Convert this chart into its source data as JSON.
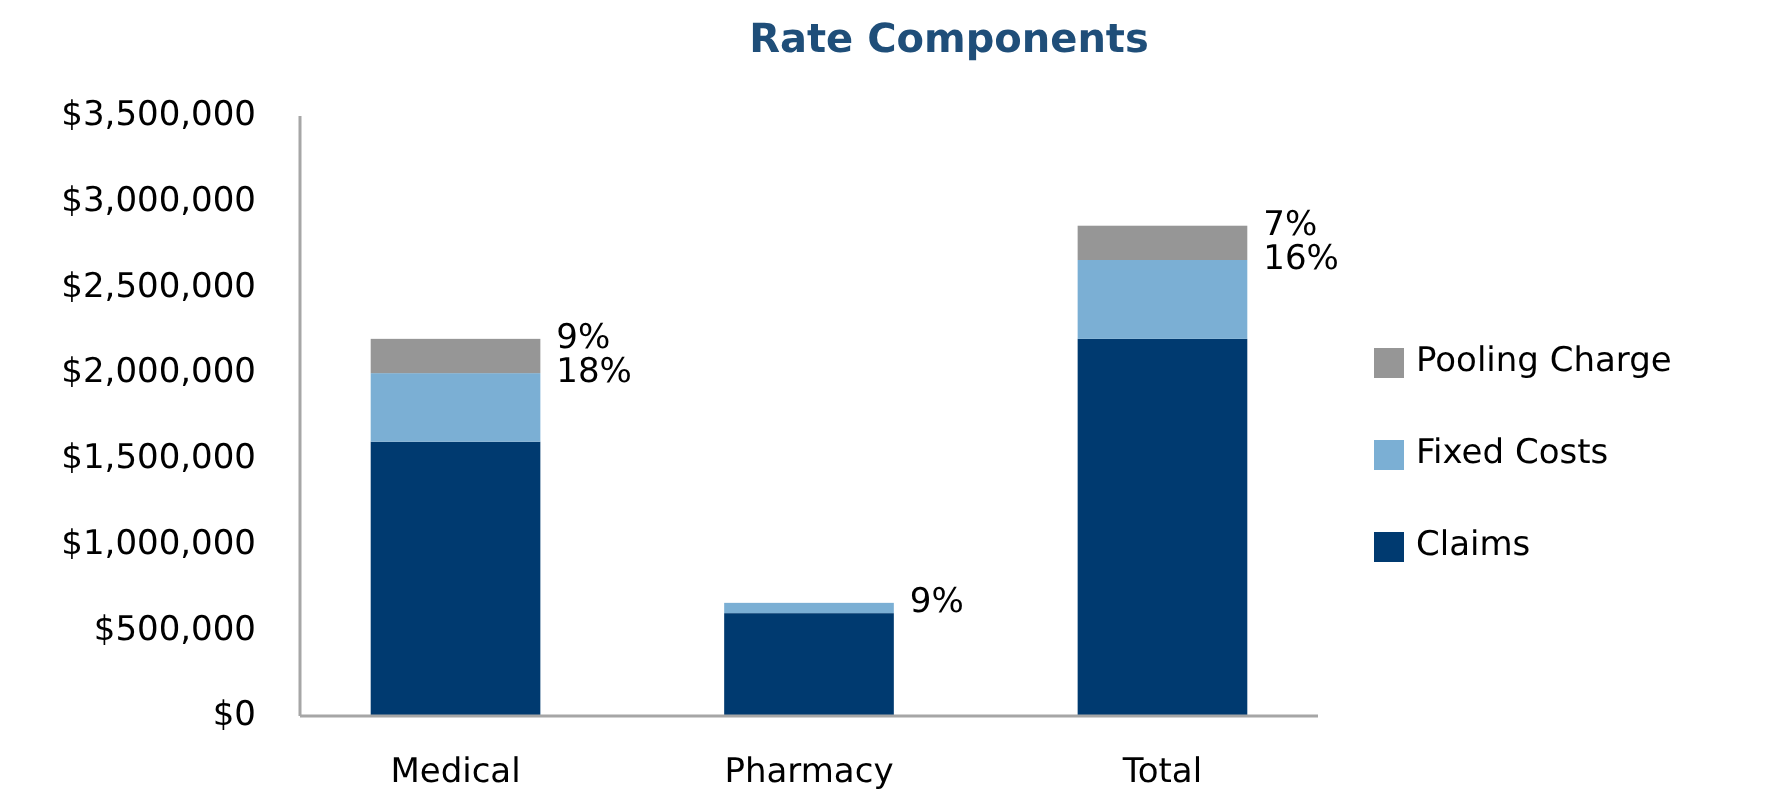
{
  "chart_data": {
    "type": "bar",
    "title": "Rate Components",
    "categories": [
      "Medical",
      "Pharmacy",
      "Total"
    ],
    "stacked": true,
    "legend": "right",
    "grid": false,
    "ylim": [
      0,
      3500000
    ],
    "yticks": [
      {
        "value": 0,
        "label": "$0"
      },
      {
        "value": 500000,
        "label": "$500,000"
      },
      {
        "value": 1000000,
        "label": "$1,000,000"
      },
      {
        "value": 1500000,
        "label": "$1,500,000"
      },
      {
        "value": 2000000,
        "label": "$2,000,000"
      },
      {
        "value": 2500000,
        "label": "$2,500,000"
      },
      {
        "value": 3000000,
        "label": "$3,000,000"
      },
      {
        "value": 3500000,
        "label": "$3,500,000"
      }
    ],
    "series": [
      {
        "name": "Claims",
        "color": "#003a70",
        "values": [
          1600000,
          600000,
          2200000
        ]
      },
      {
        "name": "Fixed Costs",
        "color": "#7bafd4",
        "values": [
          400000,
          60000,
          460000
        ]
      },
      {
        "name": "Pooling Charge",
        "color": "#969696",
        "values": [
          200000,
          null,
          200000
        ]
      }
    ],
    "annotations": [
      {
        "text": "9%",
        "x": "Medical",
        "y": 2200000
      },
      {
        "text": "18%",
        "x": "Medical",
        "y": 2000000
      },
      {
        "text": "9%",
        "x": "Pharmacy",
        "y": 660000
      },
      {
        "text": "7%",
        "x": "Total",
        "y": 2860000
      },
      {
        "text": "16%",
        "x": "Total",
        "y": 2660000
      }
    ]
  }
}
